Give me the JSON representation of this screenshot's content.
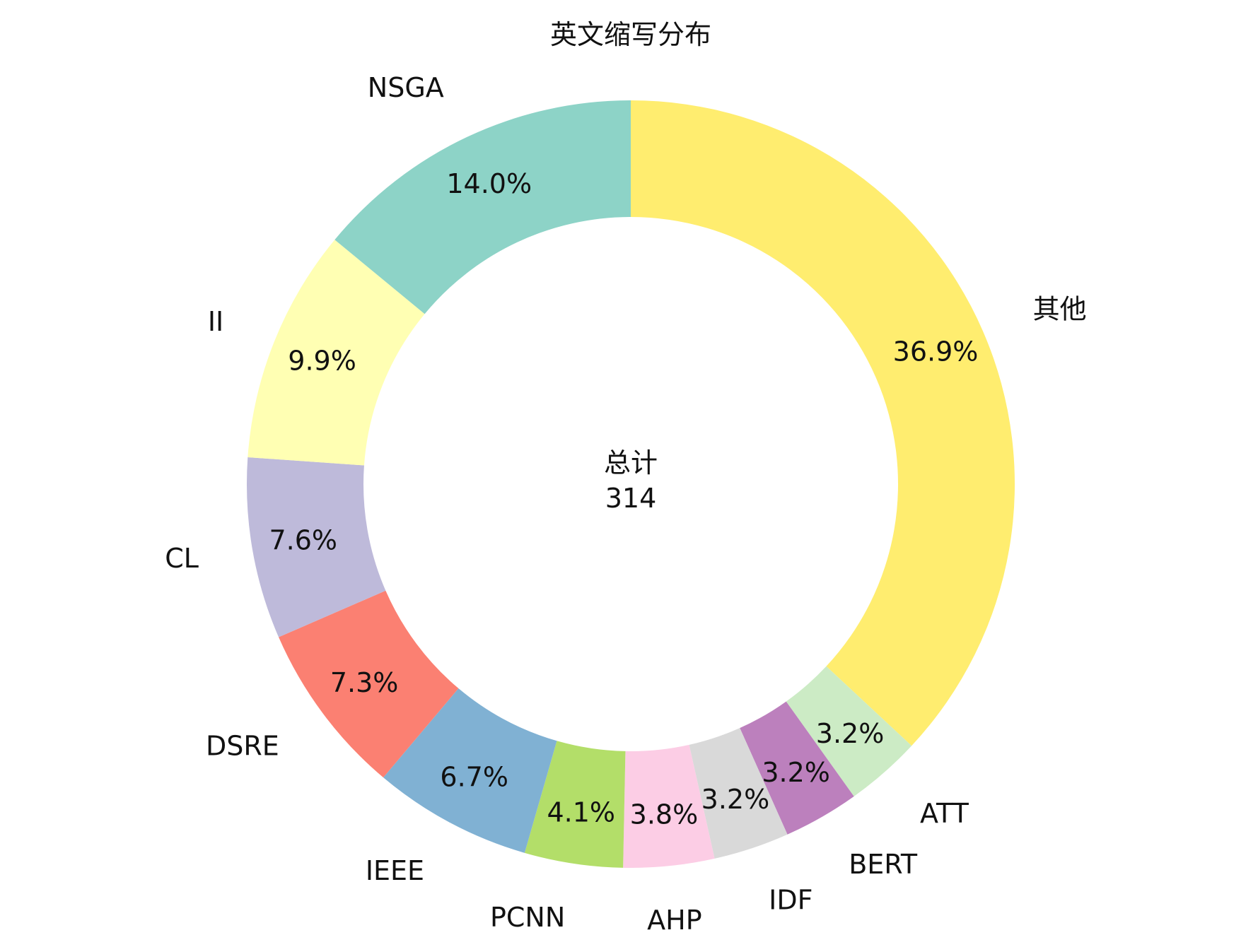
{
  "chart_data": {
    "type": "pie",
    "donut": true,
    "title": "英文缩写分布",
    "center_label": "总计",
    "center_value": "314",
    "slices": [
      {
        "label": "其他",
        "value": 116,
        "percent": "36.9%",
        "color": "#FFED6F"
      },
      {
        "label": "ATT",
        "value": 10,
        "percent": "3.2%",
        "color": "#CCEBC5"
      },
      {
        "label": "BERT",
        "value": 10,
        "percent": "3.2%",
        "color": "#BC80BD"
      },
      {
        "label": "IDF",
        "value": 10,
        "percent": "3.2%",
        "color": "#D9D9D9"
      },
      {
        "label": "AHP",
        "value": 12,
        "percent": "3.8%",
        "color": "#FCCDE5"
      },
      {
        "label": "PCNN",
        "value": 13,
        "percent": "4.1%",
        "color": "#B3DE69"
      },
      {
        "label": "IEEE",
        "value": 21,
        "percent": "6.7%",
        "color": "#80B1D3"
      },
      {
        "label": "DSRE",
        "value": 23,
        "percent": "7.3%",
        "color": "#FB8072"
      },
      {
        "label": "CL",
        "value": 24,
        "percent": "7.6%",
        "color": "#BEBADA"
      },
      {
        "label": "II",
        "value": 31,
        "percent": "9.9%",
        "color": "#FFFFB3"
      },
      {
        "label": "NSGA",
        "value": 44,
        "percent": "14.0%",
        "color": "#8DD3C7"
      }
    ],
    "start_angle_deg": 90,
    "direction": "clockwise"
  }
}
